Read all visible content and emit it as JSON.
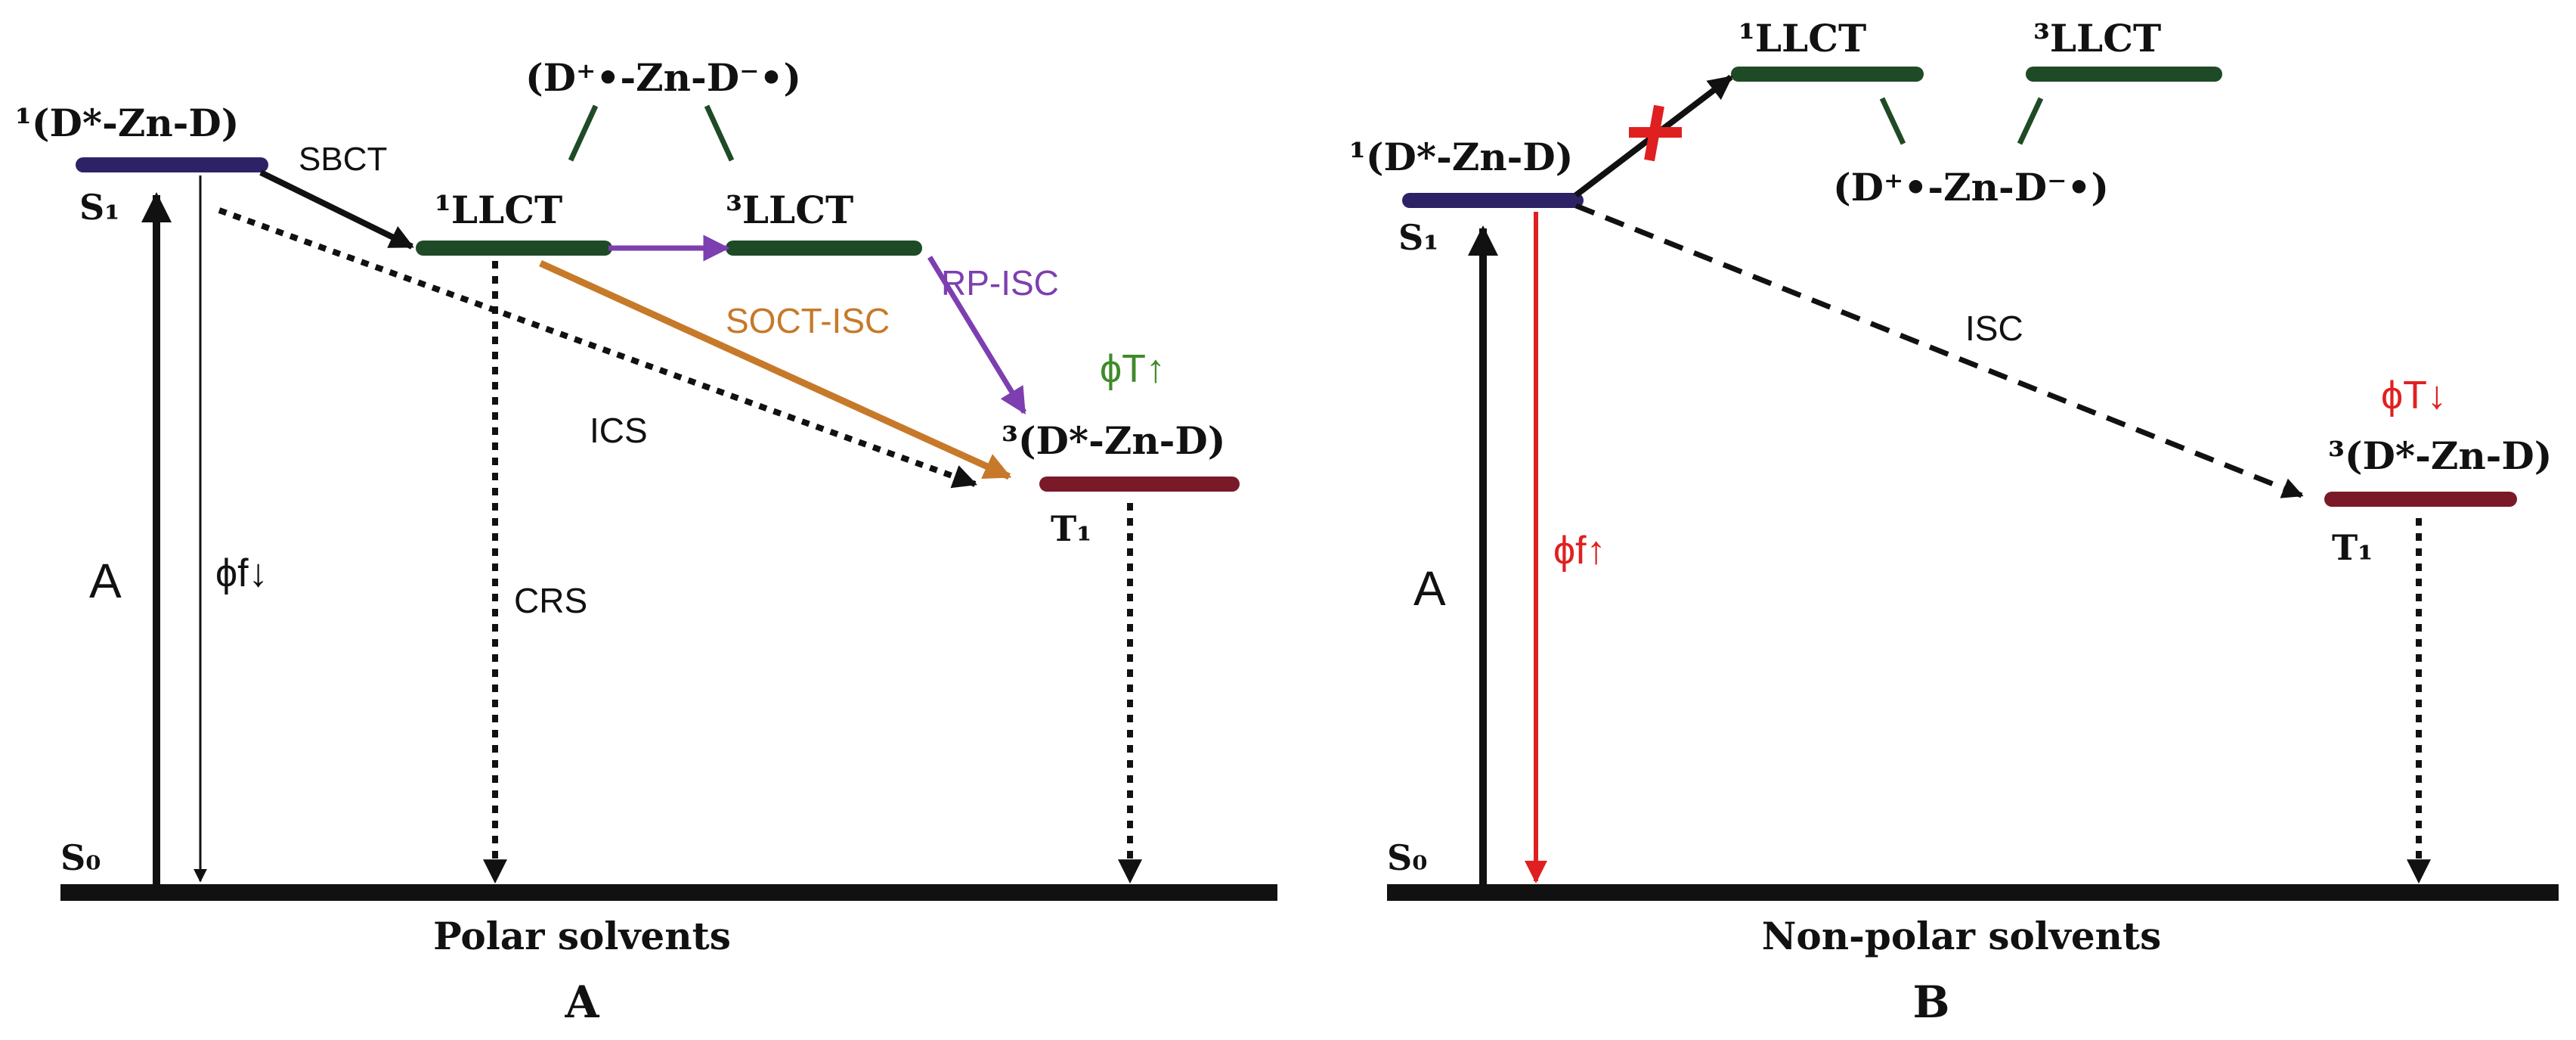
{
  "colors": {
    "black": "#111111",
    "s1_level": "#2e2266",
    "llct_level": "#1f4a26",
    "t1_level": "#7a1a28",
    "purple": "#7d3fb0",
    "orange": "#c7792a",
    "green_text": "#3f8a2b",
    "red": "#e02020"
  },
  "panel_a": {
    "s1_state": "¹(D*-Zn-D)",
    "s1_symbol": "S₁",
    "s0_symbol": "S₀",
    "sbct": "SBCT",
    "rp_state": "(D⁺•-Zn-D⁻•)",
    "llct1": "¹LLCT",
    "llct3": "³LLCT",
    "rp_isc": "RP-ISC",
    "soct_isc": "SOCT-ISC",
    "phi_t": "ϕT↑",
    "ics": "ICS",
    "t1_state": "³(D*-Zn-D)",
    "t1_symbol": "T₁",
    "absorption": "A",
    "phi_f": "ϕf↓",
    "crs": "CRS",
    "solvent": "Polar solvents",
    "panel_label": "A"
  },
  "panel_b": {
    "s1_state": "¹(D*-Zn-D)",
    "s1_symbol": "S₁",
    "s0_symbol": "S₀",
    "llct1": "¹LLCT",
    "llct3": "³LLCT",
    "rp_state": "(D⁺•-Zn-D⁻•)",
    "isc": "ISC",
    "phi_t": "ϕT↓",
    "t1_state": "³(D*-Zn-D)",
    "t1_symbol": "T₁",
    "absorption": "A",
    "phi_f": "ϕf↑",
    "solvent": "Non-polar solvents",
    "panel_label": "B"
  }
}
